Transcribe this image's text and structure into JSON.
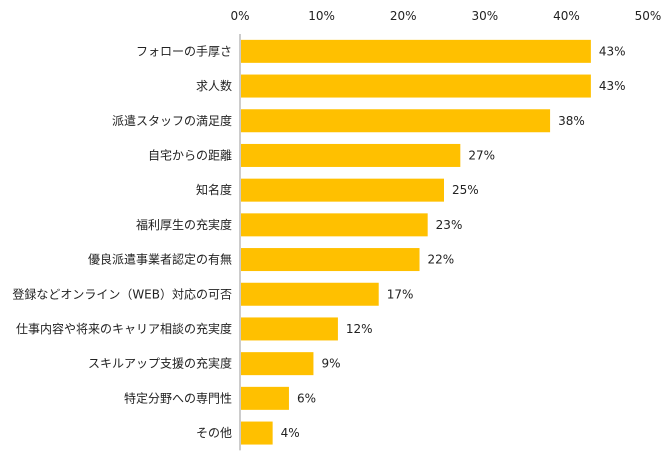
{
  "chart_data": {
    "type": "bar",
    "orientation": "horizontal",
    "title": "",
    "xlabel": "",
    "ylabel": "",
    "xlim": [
      0,
      50
    ],
    "ticks": [
      0,
      10,
      20,
      30,
      40,
      50
    ],
    "tick_labels": [
      "0%",
      "10%",
      "20%",
      "30%",
      "40%",
      "50%"
    ],
    "axis_position": "top",
    "grid": false,
    "legend": "none",
    "bar_color": "#ffc000",
    "categories": [
      "フォローの手厚さ",
      "求人数",
      "派遣スタッフの満足度",
      "自宅からの距離",
      "知名度",
      "福利厚生の充実度",
      "優良派遣事業者認定の有無",
      "登録などオンライン（WEB）対応の可否",
      "仕事内容や将来のキャリア相談の充実度",
      "スキルアップ支援の充実度",
      "特定分野への専門性",
      "その他"
    ],
    "values": [
      43,
      43,
      38,
      27,
      25,
      23,
      22,
      17,
      12,
      9,
      6,
      4
    ],
    "value_labels": [
      "43%",
      "43%",
      "38%",
      "27%",
      "25%",
      "23%",
      "22%",
      "17%",
      "12%",
      "9%",
      "6%",
      "4%"
    ]
  }
}
